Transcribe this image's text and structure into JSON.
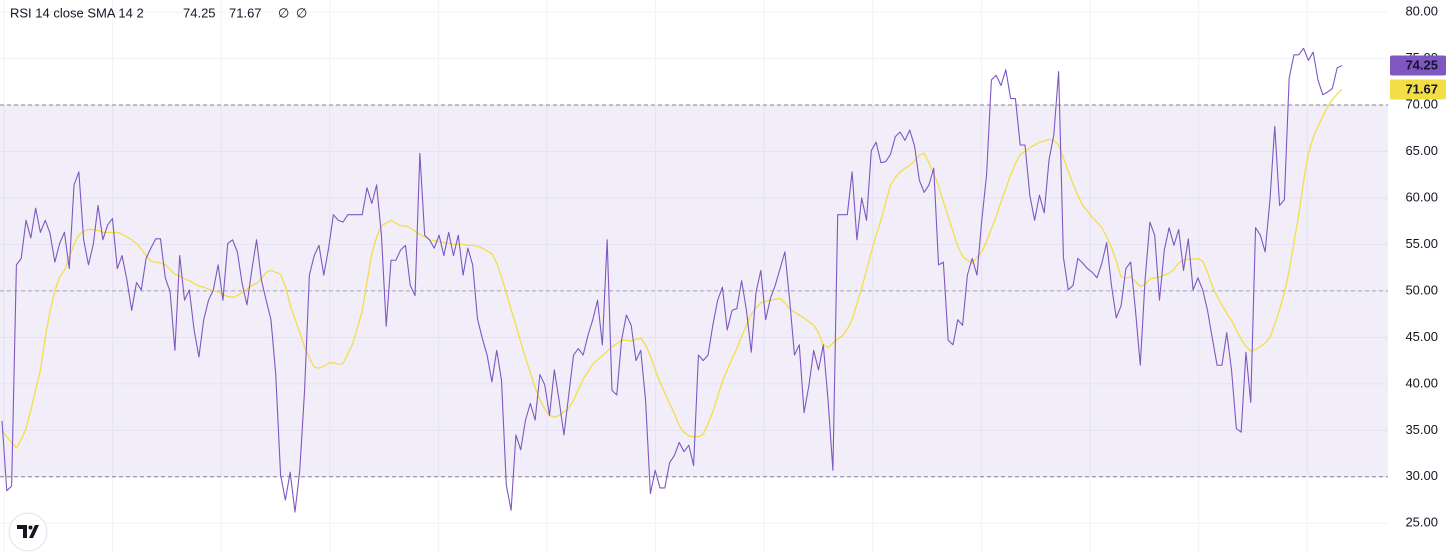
{
  "chart_data": {
    "type": "line",
    "header": {
      "title": "RSI 14 close SMA 14 2",
      "na_symbols": [
        "∅",
        "∅"
      ]
    },
    "ylim": [
      21.8,
      81.3
    ],
    "yticks": [
      {
        "value": 80,
        "label": "80.00"
      },
      {
        "value": 75,
        "label": "75.00"
      },
      {
        "value": 70,
        "label": "70.00"
      },
      {
        "value": 65,
        "label": "65.00"
      },
      {
        "value": 60,
        "label": "60.00"
      },
      {
        "value": 55,
        "label": "55.00"
      },
      {
        "value": 50,
        "label": "50.00"
      },
      {
        "value": 45,
        "label": "45.00"
      },
      {
        "value": 40,
        "label": "40.00"
      },
      {
        "value": 35,
        "label": "35.00"
      },
      {
        "value": 30,
        "label": "30.00"
      },
      {
        "value": 25,
        "label": "25.00"
      }
    ],
    "grid": true,
    "bands": {
      "upper": 70,
      "middle": 50,
      "lower": 30,
      "color": "#7e57c2"
    },
    "series": [
      {
        "color": "#7e57c2",
        "values": [
          36,
          28.5,
          29,
          52.8,
          53.5,
          57.6,
          55.7,
          58.9,
          56.3,
          57.6,
          56.2,
          53.1,
          55.1,
          56.3,
          52.4,
          61.4,
          62.8,
          55.5,
          52.8,
          55,
          59.2,
          55.5,
          57.1,
          57.8,
          52.4,
          53.8,
          51.2,
          47.9,
          50.9,
          50.1,
          53.5,
          54.6,
          55.6,
          55.6,
          51.4,
          49.9,
          43.6,
          53.8,
          49,
          50.1,
          45.8,
          42.9,
          46.9,
          49,
          50.1,
          52.8,
          49,
          55.1,
          55.5,
          54.2,
          50.8,
          48.5,
          52.2,
          55.5,
          51.2,
          49,
          46.9,
          41,
          30.2,
          27.5,
          30.5,
          26.2,
          30.7,
          39.3,
          51.7,
          53.8,
          54.9,
          51.7,
          54.6,
          58.2,
          57.6,
          57.4,
          58.2,
          58.2,
          58.2,
          58.2,
          61.1,
          59.4,
          61.4,
          56,
          46.2,
          53.3,
          53.3,
          54.4,
          54.9,
          50.6,
          49.5,
          64.8,
          56,
          55.5,
          54.6,
          56,
          53.8,
          56.3,
          53.8,
          56,
          51.7,
          54.6,
          52.8,
          47,
          44.9,
          43.1,
          40.2,
          43.6,
          40.4,
          29.1,
          26.4,
          34.5,
          32.9,
          36.1,
          37.9,
          36.1,
          41,
          39.9,
          36.6,
          41.5,
          38.2,
          34.5,
          38.8,
          43.1,
          43.8,
          43.1,
          45.2,
          46.9,
          49,
          44.2,
          55.5,
          39.3,
          38.8,
          44.7,
          47.4,
          46.3,
          42.5,
          43.6,
          38.2,
          28.2,
          30.7,
          28.8,
          28.8,
          31.5,
          32.3,
          33.7,
          32.7,
          33.4,
          31.2,
          43.1,
          42.5,
          43.1,
          46.3,
          49,
          50.4,
          45.8,
          47.9,
          48.1,
          51.1,
          47.9,
          43.4,
          49.9,
          52.2,
          46.9,
          49.2,
          50.6,
          52.4,
          54.2,
          49,
          43.1,
          44.2,
          36.9,
          39.8,
          43.6,
          41.5,
          44.2,
          38.2,
          30.7,
          58.2,
          58.2,
          58.2,
          62.8,
          55.5,
          60,
          57.6,
          65.1,
          66,
          63.8,
          63.9,
          64.7,
          66.6,
          67.1,
          66.2,
          67.3,
          65.6,
          61.9,
          60.6,
          61.4,
          63.2,
          52.8,
          53.1,
          44.7,
          44.2,
          46.9,
          46.3,
          51.7,
          53.5,
          51.7,
          57.6,
          62.5,
          72.7,
          73.2,
          72.1,
          73.8,
          70.7,
          70.7,
          65.7,
          65.7,
          60.3,
          57.6,
          60.3,
          58.4,
          64.1,
          66.8,
          73.6,
          53.6,
          50.1,
          50.6,
          53.5,
          53,
          52.4,
          52,
          51.4,
          53,
          55.2,
          50.6,
          47.1,
          48.4,
          52.4,
          53.1,
          47.9,
          42,
          51.2,
          57.4,
          56,
          49,
          54.4,
          56.8,
          54.9,
          56.6,
          52.2,
          55.6,
          50.1,
          51.4,
          50.1,
          47.9,
          44.9,
          42,
          42,
          45.5,
          41.5,
          35.2,
          34.8,
          43.4,
          38,
          56.8,
          56,
          54.2,
          59.8,
          67.7,
          59.2,
          59.8,
          72.9,
          75.4,
          75.4,
          76.1,
          74.8,
          75.7,
          72.7,
          71.1,
          71.4,
          71.8,
          74,
          74.25
        ]
      },
      {
        "color": "#f3de46",
        "values": [
          35,
          34.3,
          33.7,
          33.1,
          34,
          35.2,
          37.2,
          39.3,
          41.5,
          45,
          47.8,
          50,
          51.5,
          52.2,
          53.6,
          55,
          56,
          56.4,
          56.6,
          56.6,
          56.5,
          56.3,
          56.3,
          56.3,
          56.3,
          56.1,
          55.8,
          55.5,
          55.1,
          54.5,
          53.8,
          53.2,
          53.1,
          53,
          52.8,
          52.3,
          51.8,
          51.6,
          51.3,
          51.1,
          50.8,
          50.5,
          50.4,
          50.2,
          50,
          49.9,
          49.6,
          49.4,
          49.3,
          49.5,
          49.8,
          50.2,
          50.6,
          50.8,
          51.3,
          52,
          52.2,
          52,
          51.8,
          50.5,
          48.5,
          47,
          45.5,
          44,
          42.8,
          41.8,
          41.7,
          41.9,
          42.2,
          42.3,
          42.1,
          42.2,
          43.2,
          44.3,
          46,
          47.8,
          51,
          54,
          55.8,
          57,
          57.3,
          57.6,
          57.3,
          57,
          57,
          56.8,
          56.4,
          56.1,
          55.8,
          55.5,
          55.4,
          55.3,
          55.2,
          55.1,
          55,
          55,
          55,
          54.9,
          54.9,
          54.8,
          54.6,
          54.3,
          54,
          53,
          51.5,
          49.8,
          48,
          46.3,
          44.5,
          42.8,
          41.2,
          39.6,
          38.3,
          37.3,
          36.6,
          36.4,
          36.6,
          37,
          37.4,
          38.2,
          39.4,
          40.5,
          41.3,
          42.1,
          42.6,
          43,
          43.5,
          44,
          44.3,
          44.7,
          44.7,
          44.6,
          44.8,
          44.9,
          44.2,
          43,
          41.5,
          40.2,
          39,
          37.9,
          36.8,
          35.5,
          34.8,
          34.4,
          34.3,
          34.3,
          34.6,
          35.7,
          37,
          38.6,
          40.3,
          41.5,
          42.7,
          43.8,
          45.1,
          46.3,
          47.5,
          48.2,
          48.7,
          48.9,
          49,
          49.1,
          49.2,
          48.7,
          48.1,
          47.7,
          47.4,
          47.1,
          46.7,
          46.3,
          45.5,
          44.2,
          43.9,
          44.4,
          44.8,
          45.2,
          45.9,
          46.9,
          48.6,
          50.3,
          52.2,
          54.2,
          56,
          57.6,
          59.5,
          61.4,
          62.2,
          62.8,
          63.2,
          63.5,
          64,
          64.6,
          64.8,
          63.8,
          62.6,
          61.3,
          59.6,
          58,
          56.4,
          54.8,
          53.7,
          53.3,
          53,
          53.6,
          54.2,
          55.3,
          56.7,
          58,
          59.6,
          61,
          62.5,
          63.7,
          64.7,
          65,
          65.4,
          65.7,
          66,
          66.1,
          66.3,
          66.2,
          65.7,
          64.3,
          62.9,
          61.5,
          60.3,
          59.2,
          58.6,
          57.9,
          57.4,
          56.8,
          55.8,
          54.7,
          53.2,
          51.5,
          51.4,
          51.5,
          51,
          50.5,
          50.7,
          51.3,
          51.4,
          51.5,
          51.7,
          51.9,
          52.3,
          53,
          53.3,
          53.4,
          53.4,
          53.5,
          53.2,
          52,
          50.5,
          49.4,
          48.5,
          47.6,
          46.8,
          45.8,
          44.8,
          44,
          43.5,
          43.7,
          44,
          44.4,
          45,
          46.4,
          48,
          49.8,
          52.2,
          55.2,
          58.2,
          61.8,
          64.8,
          66.5,
          67.7,
          68.8,
          69.8,
          70.6,
          71.2,
          71.67
        ]
      }
    ]
  }
}
